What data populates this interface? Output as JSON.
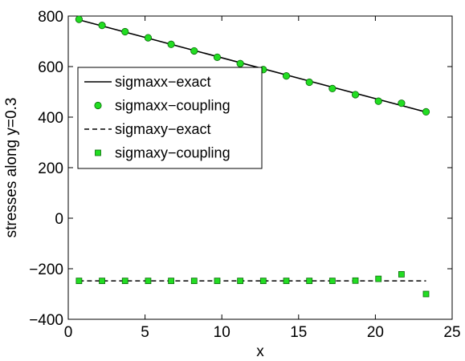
{
  "chart_data": {
    "type": "line",
    "xlabel": "x",
    "ylabel": "stresses along y=0.3",
    "xlim": [
      0,
      25
    ],
    "ylim": [
      -400,
      800
    ],
    "x_ticks": [
      0,
      5,
      10,
      15,
      20,
      25
    ],
    "y_ticks": [
      -400,
      -200,
      0,
      200,
      400,
      600,
      800
    ],
    "x_tick_labels": [
      "0",
      "5",
      "10",
      "15",
      "20",
      "25"
    ],
    "y_tick_labels": [
      "−400",
      "−200",
      "0",
      "200",
      "400",
      "600",
      "800"
    ],
    "grid": false,
    "legend_position": "upper-left",
    "series": [
      {
        "name": "sigmaxx−exact",
        "style": "line-solid",
        "color": "#000000",
        "x": [
          0.7,
          23.3
        ],
        "y": [
          785,
          420
        ]
      },
      {
        "name": "sigmaxx−coupling",
        "style": "marker-circle",
        "color": "#22dd22",
        "x": [
          0.7,
          2.2,
          3.7,
          5.2,
          6.7,
          8.2,
          9.7,
          11.2,
          12.7,
          14.2,
          15.7,
          17.2,
          18.7,
          20.2,
          21.7,
          23.3
        ],
        "y": [
          787,
          763,
          738,
          714,
          688,
          662,
          637,
          612,
          588,
          563,
          538,
          513,
          489,
          463,
          455,
          421
        ]
      },
      {
        "name": "sigmaxy−exact",
        "style": "line-dashed",
        "color": "#000000",
        "x": [
          0.7,
          23.3
        ],
        "y": [
          -248,
          -248
        ]
      },
      {
        "name": "sigmaxy−coupling",
        "style": "marker-square",
        "color": "#22dd22",
        "x": [
          0.7,
          2.2,
          3.7,
          5.2,
          6.7,
          8.2,
          9.7,
          11.2,
          12.7,
          14.2,
          15.7,
          17.2,
          18.7,
          20.2,
          21.7,
          23.3
        ],
        "y": [
          -248,
          -248,
          -248,
          -248,
          -248,
          -248,
          -248,
          -248,
          -248,
          -248,
          -248,
          -248,
          -247,
          -240,
          -222,
          -300
        ]
      }
    ]
  }
}
